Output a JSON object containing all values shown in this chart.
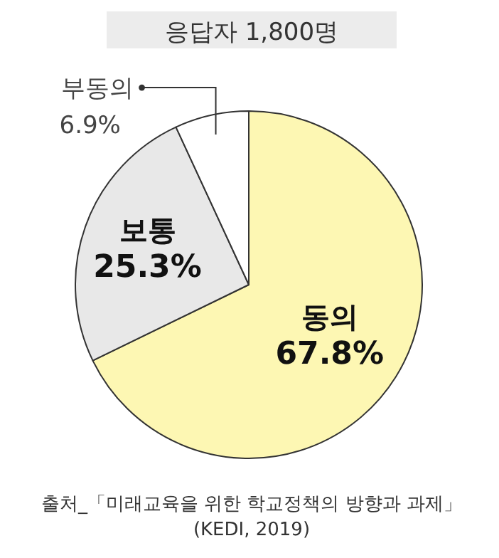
{
  "chart_data": {
    "type": "pie",
    "title": "응답자 1,800명",
    "categories": [
      "동의",
      "보통",
      "부동의"
    ],
    "values": [
      67.8,
      25.3,
      6.9
    ],
    "colors": [
      "#fdf7b3",
      "#e8e8e8",
      "#ffffff"
    ],
    "value_labels": [
      "67.8%",
      "25.3%",
      "6.9%"
    ],
    "annotations": [
      "출처_「미래교육을 위한 학교정책의 방향과 과제」",
      "(KEDI, 2019)"
    ]
  }
}
